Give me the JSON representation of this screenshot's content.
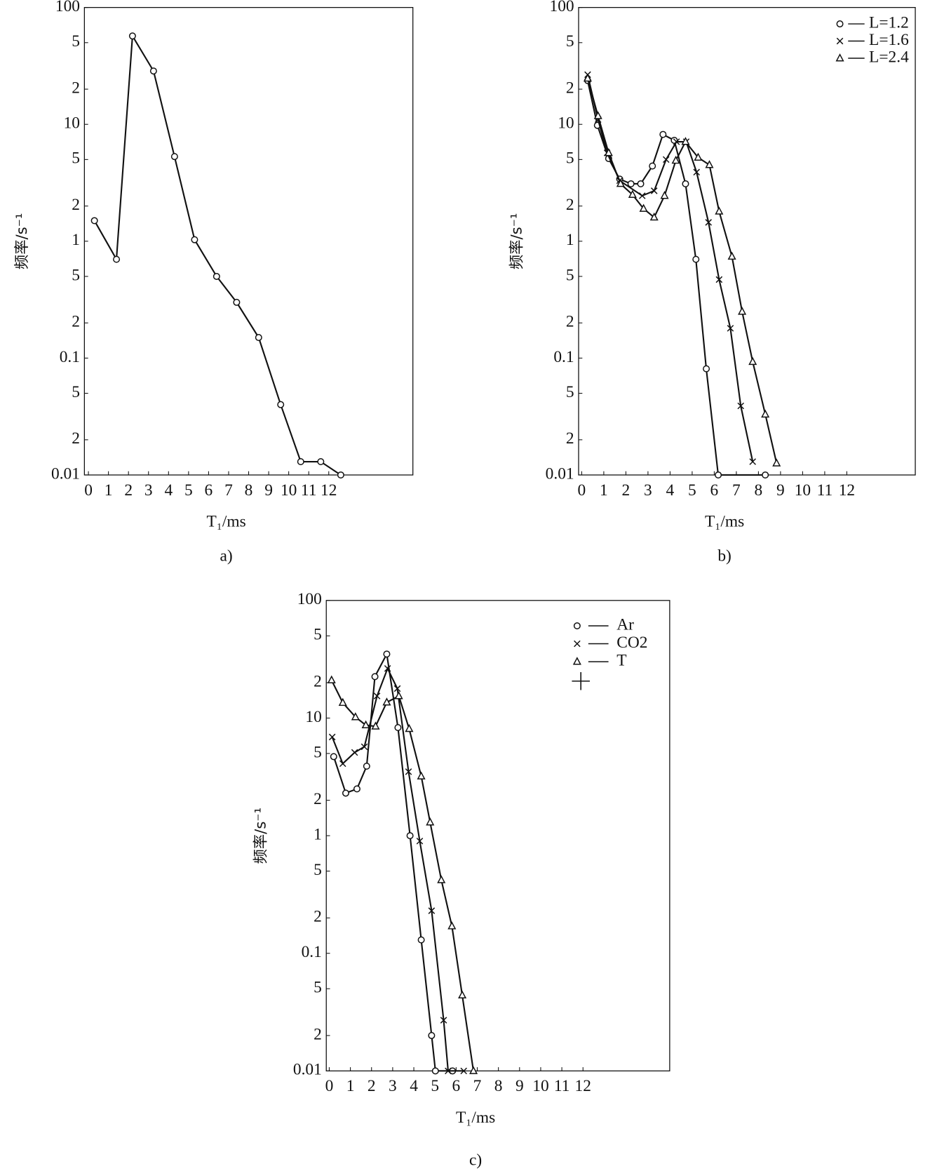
{
  "chart_data": [
    {
      "type": "line",
      "caption": "a)",
      "y_label": "频率/s⁻¹",
      "x_label": "T₁/ms",
      "y_log": true,
      "color": "#111111",
      "marker": "o",
      "xlim": [
        -0.2,
        16.2
      ],
      "xticks": [
        0,
        1,
        2,
        3,
        4,
        5,
        6,
        7,
        8,
        9,
        10,
        11,
        12
      ],
      "ylim": [
        0.01,
        100
      ],
      "yticks": [
        100,
        {
          "value": 50,
          "label": "5"
        },
        {
          "value": 20,
          "label": "2"
        },
        10,
        {
          "value": 5,
          "label": "5"
        },
        {
          "value": 2,
          "label": "2"
        },
        1,
        {
          "value": 0.5,
          "label": "5"
        },
        {
          "value": 0.2,
          "label": "2"
        },
        0.1,
        {
          "value": 0.05,
          "label": "5"
        },
        {
          "value": 0.02,
          "label": "2"
        },
        0.01
      ],
      "x": [
        0.3,
        1.4,
        2.2,
        3.25,
        4.3,
        5.3,
        6.4,
        7.4,
        8.5,
        9.6,
        10.6,
        11.6,
        12.6
      ],
      "values": [
        1.5,
        0.7,
        57,
        28.6,
        5.3,
        1.03,
        0.5,
        0.3,
        0.15,
        0.04,
        0.013,
        0.013,
        0.01
      ]
    },
    {
      "type": "line",
      "caption": "b)",
      "y_label": "频率/s⁻¹",
      "x_label": "T₁/ms",
      "y_log": true,
      "legend": "upper right",
      "xlim": [
        -0.14,
        15.1
      ],
      "xticks": [
        0,
        1,
        2,
        3,
        4,
        5,
        6,
        7,
        8,
        9,
        10,
        11,
        12
      ],
      "ylim": [
        0.01,
        100
      ],
      "yticks": [
        100,
        {
          "value": 50,
          "label": "5"
        },
        {
          "value": 20,
          "label": "2"
        },
        10,
        {
          "value": 5,
          "label": "5"
        },
        {
          "value": 2,
          "label": "2"
        },
        1,
        {
          "value": 0.5,
          "label": "5"
        },
        {
          "value": 0.2,
          "label": "2"
        },
        0.1,
        {
          "value": 0.05,
          "label": "5"
        },
        {
          "value": 0.02,
          "label": "2"
        },
        0.01
      ],
      "series": [
        {
          "name": "L=1.2",
          "color": "#111111",
          "marker": "o",
          "x": [
            0.27,
            0.71,
            1.22,
            1.72,
            2.23,
            2.67,
            3.2,
            3.68,
            4.19,
            4.7,
            5.17,
            5.64,
            6.18,
            8.31
          ],
          "values": [
            23.7,
            9.8,
            5.1,
            3.4,
            3.1,
            3.1,
            4.4,
            8.2,
            7.3,
            3.1,
            0.7,
            0.081,
            0.01,
            0.01
          ]
        },
        {
          "name": "L=1.6",
          "color": "#111111",
          "marker": "x",
          "x": [
            0.27,
            0.74,
            1.15,
            1.72,
            2.74,
            3.28,
            3.82,
            4.29,
            4.73,
            5.2,
            5.74,
            6.22,
            6.73,
            7.2,
            7.74
          ],
          "values": [
            26.6,
            11,
            5.7,
            3.3,
            2.45,
            2.7,
            5.0,
            7.1,
            7.1,
            3.9,
            1.45,
            0.47,
            0.18,
            0.039,
            0.013
          ]
        },
        {
          "name": "L=2.4",
          "color": "#111111",
          "marker": "^",
          "x": [
            0.27,
            0.74,
            1.22,
            1.76,
            2.3,
            2.8,
            3.28,
            3.75,
            4.26,
            4.7,
            5.27,
            5.78,
            6.22,
            6.8,
            7.26,
            7.74,
            8.31,
            8.82
          ],
          "values": [
            24.7,
            11.8,
            5.7,
            3.1,
            2.5,
            1.9,
            1.6,
            2.45,
            4.9,
            7.1,
            5.2,
            4.5,
            1.8,
            0.74,
            0.25,
            0.093,
            0.033,
            0.0126
          ]
        }
      ]
    },
    {
      "type": "line",
      "caption": "c)",
      "y_label": "频率/s⁻¹",
      "x_label": "T₁/ms",
      "y_log": true,
      "legend": "upper right",
      "xlim": [
        -0.14,
        16.1
      ],
      "xticks": [
        0,
        1,
        2,
        3,
        4,
        5,
        6,
        7,
        8,
        9,
        10,
        11,
        12
      ],
      "ylim": [
        0.01,
        100
      ],
      "yticks": [
        100,
        {
          "value": 50,
          "label": "5"
        },
        {
          "value": 20,
          "label": "2"
        },
        10,
        {
          "value": 5,
          "label": "5"
        },
        {
          "value": 2,
          "label": "2"
        },
        1,
        {
          "value": 0.5,
          "label": "5"
        },
        {
          "value": 0.2,
          "label": "2"
        },
        0.1,
        {
          "value": 0.05,
          "label": "5"
        },
        {
          "value": 0.02,
          "label": "2"
        },
        0.01
      ],
      "series": [
        {
          "name": "Ar",
          "color": "#111111",
          "marker": "o",
          "x": [
            0.21,
            0.78,
            1.31,
            1.77,
            2.16,
            2.72,
            3.25,
            3.82,
            4.35,
            4.84,
            5.02,
            5.83
          ],
          "values": [
            4.7,
            2.3,
            2.5,
            3.9,
            22.5,
            35,
            8.3,
            1.0,
            0.13,
            0.02,
            0.01,
            0.01
          ]
        },
        {
          "name": "CO2",
          "color": "#111111",
          "marker": "x",
          "x": [
            0.14,
            0.64,
            1.2,
            1.66,
            2.26,
            2.76,
            3.22,
            3.75,
            4.28,
            4.84,
            5.41,
            5.62,
            6.36
          ],
          "values": [
            6.9,
            4.1,
            5.1,
            5.7,
            15.4,
            26.4,
            17.8,
            3.5,
            0.9,
            0.23,
            0.027,
            0.01,
            0.01
          ]
        },
        {
          "name": "T",
          "color": "#111111",
          "marker": "^",
          "x": [
            0.11,
            0.64,
            1.24,
            1.73,
            2.19,
            2.72,
            3.29,
            3.78,
            4.35,
            4.77,
            5.3,
            5.8,
            6.29,
            6.82
          ],
          "values": [
            21,
            13.5,
            10.2,
            8.7,
            8.5,
            13.6,
            15.4,
            8.1,
            3.2,
            1.3,
            0.42,
            0.17,
            0.044,
            0.01
          ]
        }
      ]
    }
  ]
}
